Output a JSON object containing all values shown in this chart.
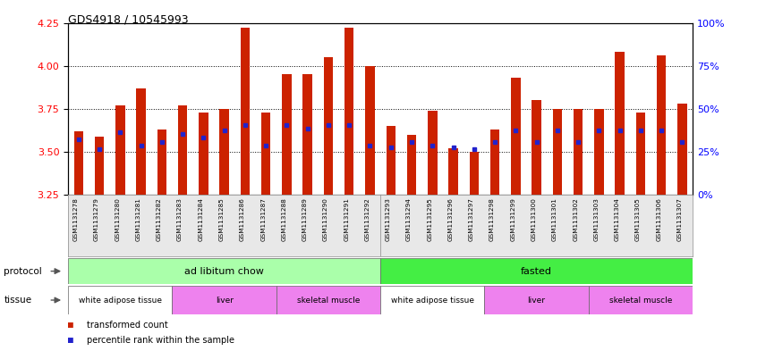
{
  "title": "GDS4918 / 10545993",
  "samples": [
    "GSM1131278",
    "GSM1131279",
    "GSM1131280",
    "GSM1131281",
    "GSM1131282",
    "GSM1131283",
    "GSM1131284",
    "GSM1131285",
    "GSM1131286",
    "GSM1131287",
    "GSM1131288",
    "GSM1131289",
    "GSM1131290",
    "GSM1131291",
    "GSM1131292",
    "GSM1131293",
    "GSM1131294",
    "GSM1131295",
    "GSM1131296",
    "GSM1131297",
    "GSM1131298",
    "GSM1131299",
    "GSM1131300",
    "GSM1131301",
    "GSM1131302",
    "GSM1131303",
    "GSM1131304",
    "GSM1131305",
    "GSM1131306",
    "GSM1131307"
  ],
  "bar_values": [
    3.62,
    3.59,
    3.77,
    3.87,
    3.63,
    3.77,
    3.73,
    3.75,
    4.22,
    3.73,
    3.95,
    3.95,
    4.05,
    4.22,
    4.0,
    3.65,
    3.6,
    3.74,
    3.52,
    3.5,
    3.63,
    3.93,
    3.8,
    3.75,
    3.75,
    3.75,
    4.08,
    3.73,
    4.06,
    3.78
  ],
  "blue_dot_values": [
    3.575,
    3.515,
    3.615,
    3.535,
    3.555,
    3.605,
    3.585,
    3.625,
    3.655,
    3.535,
    3.655,
    3.635,
    3.655,
    3.655,
    3.535,
    3.525,
    3.555,
    3.535,
    3.525,
    3.515,
    3.555,
    3.625,
    3.555,
    3.625,
    3.555,
    3.625,
    3.625,
    3.625,
    3.625,
    3.555
  ],
  "ylim": [
    3.25,
    4.25
  ],
  "yticks_left": [
    3.25,
    3.5,
    3.75,
    4.0,
    4.25
  ],
  "yticks_right": [
    0,
    25,
    50,
    75,
    100
  ],
  "bar_color": "#CC2200",
  "dot_color": "#2222CC",
  "bg_color": "#E8E8E8",
  "white_tissue_color": "#FFFFFF",
  "pink_tissue_color": "#EE82EE",
  "light_green_color": "#AAFFAA",
  "dark_green_color": "#44EE44",
  "protocol_groups": [
    {
      "label": "ad libitum chow",
      "start": 0,
      "end": 15,
      "color": "#AAFFAA"
    },
    {
      "label": "fasted",
      "start": 15,
      "end": 30,
      "color": "#44EE44"
    }
  ],
  "tissue_groups": [
    {
      "label": "white adipose tissue",
      "start": 0,
      "end": 5,
      "color": "#FFFFFF"
    },
    {
      "label": "liver",
      "start": 5,
      "end": 10,
      "color": "#EE82EE"
    },
    {
      "label": "skeletal muscle",
      "start": 10,
      "end": 15,
      "color": "#EE82EE"
    },
    {
      "label": "white adipose tissue",
      "start": 15,
      "end": 20,
      "color": "#FFFFFF"
    },
    {
      "label": "liver",
      "start": 20,
      "end": 25,
      "color": "#EE82EE"
    },
    {
      "label": "skeletal muscle",
      "start": 25,
      "end": 30,
      "color": "#EE82EE"
    }
  ]
}
